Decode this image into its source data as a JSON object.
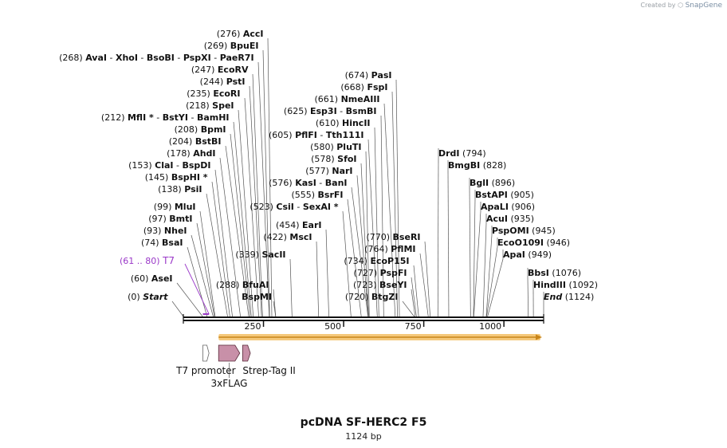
{
  "credit": {
    "created_by": "Created by",
    "brand": "SnapGene"
  },
  "title": "pcDNA SF-HERC2 F5",
  "length_label": "1124 bp",
  "scale": {
    "min": 0,
    "max": 1124,
    "ticks": [
      250,
      500,
      750,
      1000
    ]
  },
  "colors": {
    "primer": "#9a38c8",
    "orf_fill": "#f5c87a",
    "orf_edge": "#c8851a",
    "feature": "#c890a8",
    "feature_edge": "#5a2a3a"
  },
  "sites": [
    {
      "pos": "(276)",
      "name": "AccI",
      "left": [],
      "bp": 276,
      "side": "right"
    },
    {
      "pos": "(269)",
      "name": "BpuEI",
      "left": [],
      "bp": 269,
      "side": "right"
    },
    {
      "pos": "(268)",
      "name": "PaeR7I",
      "left": [
        "AvaI",
        "XhoI",
        "BsoBI",
        "PspXI"
      ],
      "bp": 268,
      "side": "right"
    },
    {
      "pos": "(247)",
      "name": "EcoRV",
      "left": [],
      "bp": 247,
      "side": "right"
    },
    {
      "pos": "(244)",
      "name": "PstI",
      "left": [],
      "bp": 244,
      "side": "right"
    },
    {
      "pos": "(235)",
      "name": "EcoRI",
      "left": [],
      "bp": 235,
      "side": "right"
    },
    {
      "pos": "(218)",
      "name": "SpeI",
      "left": [],
      "bp": 218,
      "side": "right"
    },
    {
      "pos": "(212)",
      "name": "BamHI",
      "left": [
        "MflI *",
        "BstYI"
      ],
      "bp": 212,
      "side": "right"
    },
    {
      "pos": "(208)",
      "name": "BpmI",
      "left": [],
      "bp": 208,
      "side": "right"
    },
    {
      "pos": "(204)",
      "name": "BstBI",
      "left": [],
      "bp": 204,
      "side": "right"
    },
    {
      "pos": "(178)",
      "name": "AhdI",
      "left": [],
      "bp": 178,
      "side": "right"
    },
    {
      "pos": "(153)",
      "name": "BspDI",
      "left": [
        "ClaI"
      ],
      "bp": 153,
      "side": "right"
    },
    {
      "pos": "(145)",
      "name": "BspHI *",
      "left": [],
      "bp": 145,
      "side": "right"
    },
    {
      "pos": "(138)",
      "name": "PsiI",
      "left": [],
      "bp": 138,
      "side": "right"
    },
    {
      "pos": "(99)",
      "name": "MluI",
      "left": [],
      "bp": 99,
      "side": "right"
    },
    {
      "pos": "(97)",
      "name": "BmtI",
      "left": [],
      "bp": 97,
      "side": "right"
    },
    {
      "pos": "(93)",
      "name": "NheI",
      "left": [],
      "bp": 93,
      "side": "right"
    },
    {
      "pos": "(74)",
      "name": "BsaI",
      "left": [],
      "bp": 74,
      "side": "right"
    },
    {
      "pos": "(60)",
      "name": "AseI",
      "left": [],
      "bp": 60,
      "side": "right"
    },
    {
      "pos": "(0)",
      "name": "Start",
      "left": [],
      "bp": 0,
      "side": "right",
      "italic": true
    },
    {
      "pos": "(625)",
      "name": "BsmBI",
      "left": [
        "Esp3I"
      ],
      "bp": 625,
      "side": "right"
    },
    {
      "pos": "(605)",
      "name": "Tth111I",
      "left": [
        "PflFI"
      ],
      "bp": 605,
      "side": "right"
    },
    {
      "pos": "(576)",
      "name": "BanI",
      "left": [
        "KasI"
      ],
      "bp": 576,
      "side": "right"
    },
    {
      "pos": "(523)",
      "name": "SexAI *",
      "left": [
        "CsiI"
      ],
      "bp": 523,
      "side": "right"
    },
    {
      "pos": "(454)",
      "name": "EarI",
      "left": [],
      "bp": 454,
      "side": "right"
    },
    {
      "pos": "(422)",
      "name": "MscI",
      "left": [],
      "bp": 422,
      "side": "right"
    },
    {
      "pos": "(339)",
      "name": "SacII",
      "left": [],
      "bp": 339,
      "side": "right"
    },
    {
      "pos": "(288)",
      "name": "BfuAI",
      "left": [],
      "bp": 288,
      "side": "right"
    },
    {
      "pos": "",
      "name": "BspMI",
      "left": [],
      "bp": 288,
      "side": "right"
    },
    {
      "pos": "(674)",
      "name": "PasI",
      "left": [],
      "bp": 674,
      "side": "right"
    },
    {
      "pos": "(668)",
      "name": "FspI",
      "left": [],
      "bp": 668,
      "side": "right"
    },
    {
      "pos": "(661)",
      "name": "NmeAIII",
      "left": [],
      "bp": 661,
      "side": "right"
    },
    {
      "pos": "(610)",
      "name": "HincII",
      "left": [],
      "bp": 610,
      "side": "right"
    },
    {
      "pos": "(580)",
      "name": "PluTI",
      "left": [],
      "bp": 580,
      "side": "right"
    },
    {
      "pos": "(578)",
      "name": "SfoI",
      "left": [],
      "bp": 578,
      "side": "right"
    },
    {
      "pos": "(577)",
      "name": "NarI",
      "left": [],
      "bp": 577,
      "side": "right"
    },
    {
      "pos": "(555)",
      "name": "BsrFI",
      "left": [],
      "bp": 555,
      "side": "right"
    },
    {
      "pos": "(770)",
      "name": "BseRI",
      "left": [],
      "bp": 770,
      "side": "right"
    },
    {
      "pos": "(764)",
      "name": "PflMI",
      "left": [],
      "bp": 764,
      "side": "right"
    },
    {
      "pos": "(734)",
      "name": "EcoP15I",
      "left": [],
      "bp": 734,
      "side": "right"
    },
    {
      "pos": "(727)",
      "name": "PspFI",
      "left": [],
      "bp": 727,
      "side": "right"
    },
    {
      "pos": "(723)",
      "name": "BseYI",
      "left": [],
      "bp": 723,
      "side": "right"
    },
    {
      "pos": "(720)",
      "name": "BtgZI",
      "left": [],
      "bp": 720,
      "side": "right"
    },
    {
      "pos": "(794)",
      "name": "DrdI",
      "left": [],
      "bp": 794,
      "side": "left"
    },
    {
      "pos": "(828)",
      "name": "BmgBI",
      "left": [],
      "bp": 828,
      "side": "left"
    },
    {
      "pos": "(896)",
      "name": "BglI",
      "left": [],
      "bp": 896,
      "side": "left"
    },
    {
      "pos": "(905)",
      "name": "BstAPI",
      "left": [],
      "bp": 905,
      "side": "left"
    },
    {
      "pos": "(906)",
      "name": "ApaLI",
      "left": [],
      "bp": 906,
      "side": "left"
    },
    {
      "pos": "(935)",
      "name": "AcuI",
      "left": [],
      "bp": 935,
      "side": "left"
    },
    {
      "pos": "(945)",
      "name": "PspOMI",
      "left": [],
      "bp": 945,
      "side": "left"
    },
    {
      "pos": "(946)",
      "name": "EcoO109I",
      "left": [],
      "bp": 946,
      "side": "left"
    },
    {
      "pos": "(949)",
      "name": "ApaI",
      "left": [],
      "bp": 949,
      "side": "left"
    },
    {
      "pos": "(1076)",
      "name": "BbsI",
      "left": [],
      "bp": 1076,
      "side": "left"
    },
    {
      "pos": "(1092)",
      "name": "HindIII",
      "left": [],
      "bp": 1092,
      "side": "left"
    },
    {
      "pos": "(1124)",
      "name": "End",
      "left": [],
      "bp": 1124,
      "side": "left",
      "italic": true
    }
  ],
  "primer": {
    "pos": "(61 .. 80)",
    "name": "T7",
    "start": 61,
    "end": 80
  },
  "features": [
    {
      "name": "T7 promoter",
      "start": 61,
      "end": 80
    },
    {
      "name": "3xFLAG",
      "start": 110,
      "end": 176
    },
    {
      "name": "Strep-Tag II",
      "start": 185,
      "end": 209
    }
  ],
  "orf": {
    "start": 110,
    "end": 1124
  }
}
